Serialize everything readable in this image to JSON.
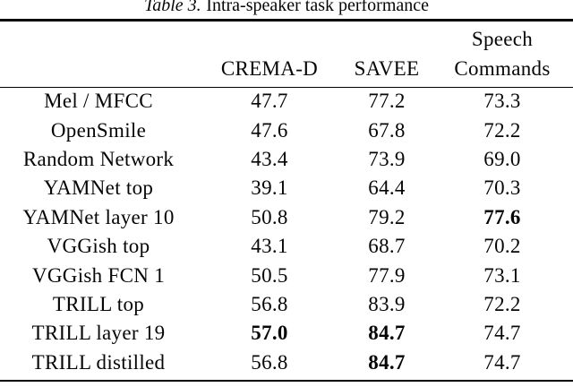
{
  "caption": {
    "number": "Table 3.",
    "text": "Intra-speaker task performance"
  },
  "header": {
    "crema_d": "CREMA-D",
    "savee": "SAVEE",
    "speech_line1": "Speech",
    "speech_line2": "Commands"
  },
  "rows": [
    {
      "label": "Mel / MFCC",
      "values": [
        "47.7",
        "77.2",
        "73.3"
      ],
      "bold": [
        false,
        false,
        false
      ]
    },
    {
      "label": "OpenSmile",
      "values": [
        "47.6",
        "67.8",
        "72.2"
      ],
      "bold": [
        false,
        false,
        false
      ]
    },
    {
      "label": "Random Network",
      "values": [
        "43.4",
        "73.9",
        "69.0"
      ],
      "bold": [
        false,
        false,
        false
      ]
    },
    {
      "label": "YAMNet top",
      "values": [
        "39.1",
        "64.4",
        "70.3"
      ],
      "bold": [
        false,
        false,
        false
      ]
    },
    {
      "label": "YAMNet layer 10",
      "values": [
        "50.8",
        "79.2",
        "77.6"
      ],
      "bold": [
        false,
        false,
        true
      ]
    },
    {
      "label": "VGGish top",
      "values": [
        "43.1",
        "68.7",
        "70.2"
      ],
      "bold": [
        false,
        false,
        false
      ]
    },
    {
      "label": "VGGish FCN 1",
      "values": [
        "50.5",
        "77.9",
        "73.1"
      ],
      "bold": [
        false,
        false,
        false
      ]
    },
    {
      "label": "TRILL top",
      "values": [
        "56.8",
        "83.9",
        "72.2"
      ],
      "bold": [
        false,
        false,
        false
      ]
    },
    {
      "label": "TRILL layer 19",
      "values": [
        "57.0",
        "84.7",
        "74.7"
      ],
      "bold": [
        true,
        true,
        false
      ]
    },
    {
      "label": "TRILL distilled",
      "values": [
        "56.8",
        "84.7",
        "74.7"
      ],
      "bold": [
        false,
        true,
        false
      ]
    }
  ]
}
